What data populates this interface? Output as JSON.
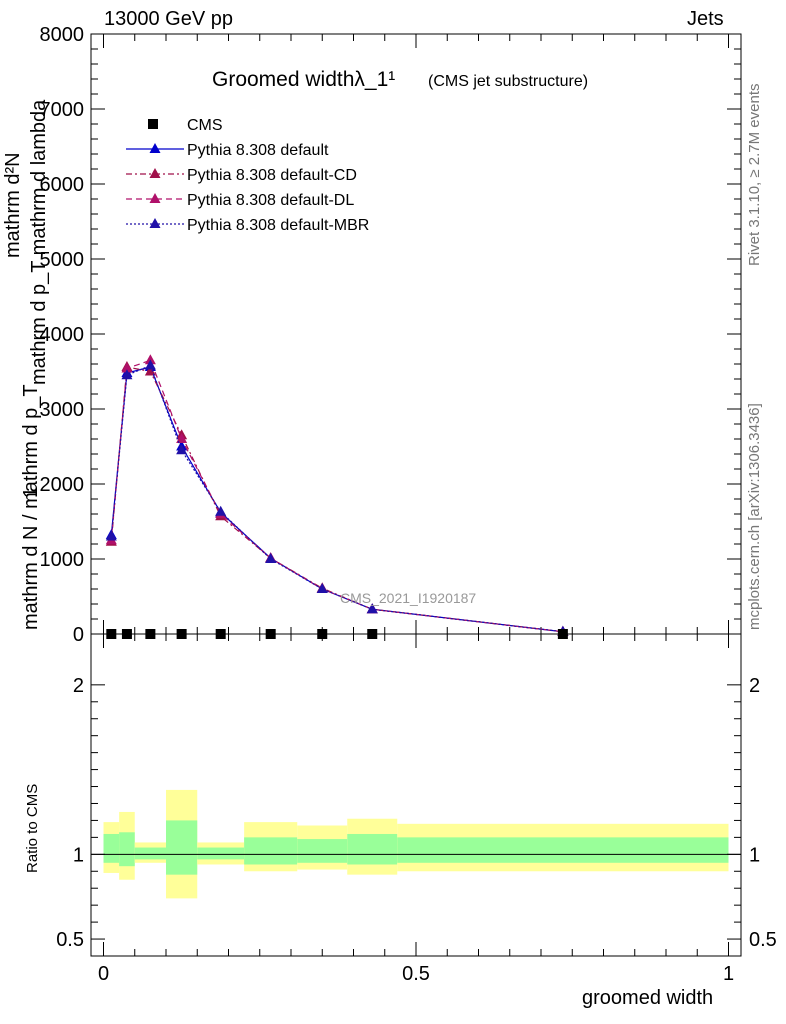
{
  "header": {
    "left": "13000 GeV pp",
    "right": "Jets"
  },
  "side_labels": {
    "rivet": "Rivet 3.1.10, ≥ 2.7M events",
    "mcplots": "mcplots.cern.ch [arXiv:1306.3436]"
  },
  "colors": {
    "cms": "#000000",
    "default": "#0000cc",
    "cd": "#a0104a",
    "dl": "#b0106a",
    "mbr": "#2010a8",
    "band_outer": "#ffff99",
    "band_inner": "#99ff99"
  },
  "chart_data": [
    {
      "type": "line",
      "title": "Groomed widthλ_1¹",
      "subtitle": "(CMS jet substructure)",
      "ylabel_parts": [
        "1",
        "mathrm d N / mathrm d p_T",
        "mathrm d²N",
        "mathrm d p_T mathrm d lambda"
      ],
      "watermark": "CMS_2021_I1920187",
      "xlim": [
        -0.02,
        1.02
      ],
      "ylim": [
        0,
        8000
      ],
      "yticks": [
        0,
        1000,
        2000,
        3000,
        4000,
        5000,
        6000,
        7000,
        8000
      ],
      "ytick_labels": [
        "0",
        "1000",
        "2000",
        "3000",
        "4000",
        "5000",
        "6000",
        "7000",
        "8000"
      ],
      "legend_position": "top-left",
      "x": [
        0.0125,
        0.0375,
        0.075,
        0.125,
        0.1875,
        0.2675,
        0.35,
        0.43,
        0.735
      ],
      "series": [
        {
          "name": "CMS",
          "style": "markers-square",
          "color_key": "cms",
          "values": [
            0,
            0,
            0,
            0,
            0,
            0,
            0,
            0,
            0
          ]
        },
        {
          "name": "Pythia 8.308 default",
          "style": "solid-triangle",
          "color_key": "default",
          "values": [
            1320,
            3480,
            3560,
            2500,
            1620,
            1010,
            600,
            330,
            30
          ]
        },
        {
          "name": "Pythia 8.308 default-CD",
          "style": "dashdot-triangle",
          "color_key": "cd",
          "values": [
            1230,
            3560,
            3500,
            2650,
            1570,
            1010,
            610,
            330,
            30
          ]
        },
        {
          "name": "Pythia 8.308 default-DL",
          "style": "dashed-triangle",
          "color_key": "dl",
          "values": [
            1250,
            3540,
            3650,
            2600,
            1600,
            1010,
            600,
            330,
            30
          ]
        },
        {
          "name": "Pythia 8.308 default-MBR",
          "style": "dotted-triangle",
          "color_key": "mbr",
          "values": [
            1300,
            3450,
            3580,
            2450,
            1630,
            1000,
            600,
            330,
            30
          ]
        }
      ]
    },
    {
      "type": "area",
      "ylabel": "Ratio to CMS",
      "xlabel": "groomed width",
      "xlim": [
        -0.02,
        1.02
      ],
      "ylim": [
        0.4,
        2.3
      ],
      "yticks": [
        0.5,
        1,
        2
      ],
      "ytick_labels": [
        "0.5",
        "1",
        "2"
      ],
      "xticks": [
        0,
        0.5,
        1
      ],
      "xtick_labels": [
        "0",
        "0.5",
        "1"
      ],
      "reference_line": 1,
      "bins": [
        {
          "lo": 0.0,
          "hi": 0.025,
          "outer": [
            0.89,
            1.19
          ],
          "inner": [
            0.95,
            1.12
          ]
        },
        {
          "lo": 0.025,
          "hi": 0.05,
          "outer": [
            0.85,
            1.25
          ],
          "inner": [
            0.93,
            1.13
          ]
        },
        {
          "lo": 0.05,
          "hi": 0.1,
          "outer": [
            0.95,
            1.07
          ],
          "inner": [
            0.97,
            1.04
          ]
        },
        {
          "lo": 0.1,
          "hi": 0.15,
          "outer": [
            0.74,
            1.38
          ],
          "inner": [
            0.88,
            1.2
          ]
        },
        {
          "lo": 0.15,
          "hi": 0.225,
          "outer": [
            0.94,
            1.07
          ],
          "inner": [
            0.97,
            1.04
          ]
        },
        {
          "lo": 0.225,
          "hi": 0.31,
          "outer": [
            0.9,
            1.19
          ],
          "inner": [
            0.94,
            1.1
          ]
        },
        {
          "lo": 0.31,
          "hi": 0.39,
          "outer": [
            0.91,
            1.17
          ],
          "inner": [
            0.95,
            1.09
          ]
        },
        {
          "lo": 0.39,
          "hi": 0.47,
          "outer": [
            0.88,
            1.21
          ],
          "inner": [
            0.94,
            1.12
          ]
        },
        {
          "lo": 0.47,
          "hi": 1.0,
          "outer": [
            0.9,
            1.18
          ],
          "inner": [
            0.95,
            1.1
          ]
        }
      ]
    }
  ]
}
